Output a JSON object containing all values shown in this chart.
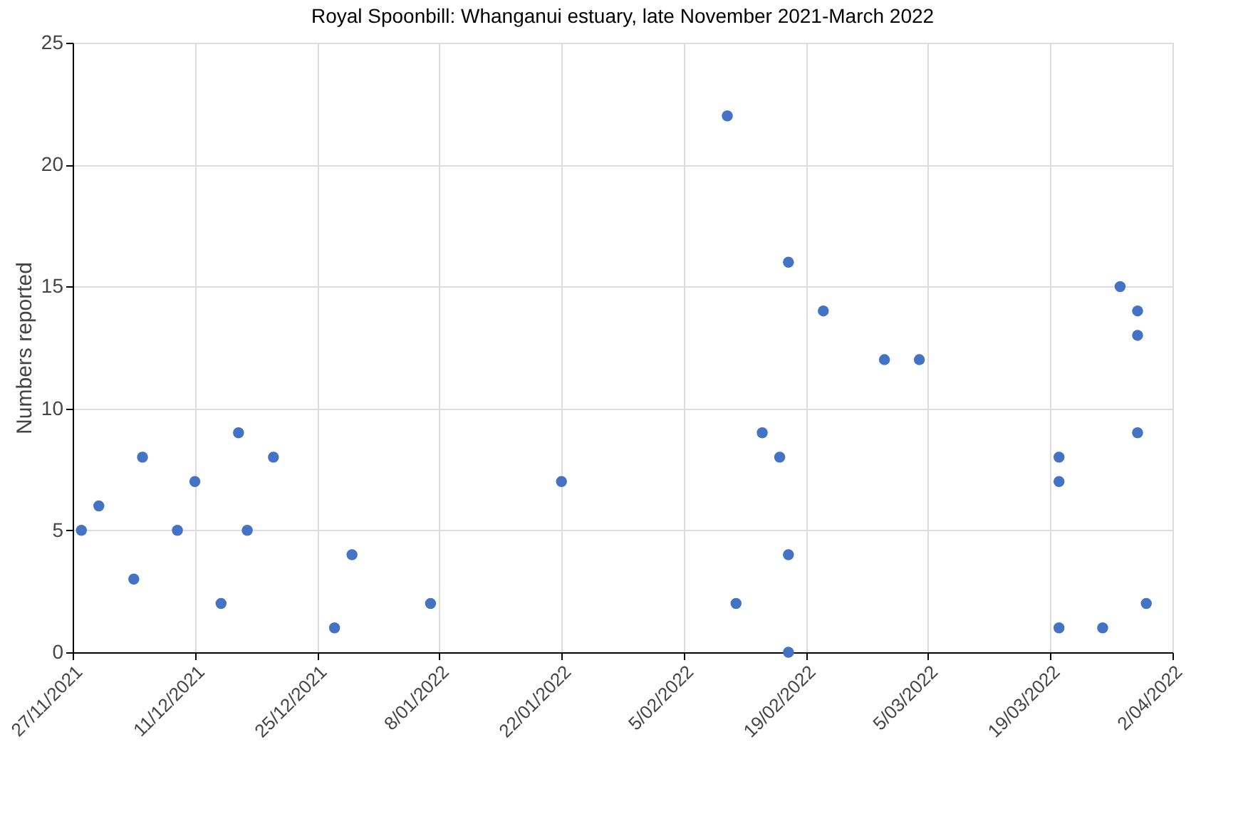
{
  "chart_data": {
    "type": "scatter",
    "title": "Royal Spoonbill: Whanganui estuary, late November 2021-March 2022",
    "ylabel": "Numbers reported",
    "x": [
      "2021-11-28",
      "2021-11-30",
      "2021-12-04",
      "2021-12-05",
      "2021-12-09",
      "2021-12-11",
      "2021-12-14",
      "2021-12-16",
      "2021-12-17",
      "2021-12-20",
      "2021-12-27",
      "2021-12-29",
      "2022-01-07",
      "2022-01-22",
      "2022-02-10",
      "2022-02-11",
      "2022-02-14",
      "2022-02-16",
      "2022-02-17",
      "2022-02-17",
      "2022-02-17",
      "2022-02-21",
      "2022-02-28",
      "2022-03-04",
      "2022-03-20",
      "2022-03-20",
      "2022-03-20",
      "2022-03-25",
      "2022-03-27",
      "2022-03-29",
      "2022-03-29",
      "2022-03-29",
      "2022-03-30"
    ],
    "series": [
      {
        "color": "#4472c4",
        "values": [
          5,
          6,
          3,
          8,
          5,
          7,
          2,
          9,
          5,
          8,
          1,
          4,
          2,
          7,
          22,
          2,
          9,
          8,
          16,
          4,
          0,
          14,
          12,
          12,
          8,
          7,
          1,
          1,
          15,
          14,
          13,
          9,
          2
        ]
      }
    ],
    "xlim": [
      "2021-11-27",
      "2022-04-02"
    ],
    "xticks": [
      {
        "value": "2021-11-27",
        "label": "27/11/2021"
      },
      {
        "value": "2021-12-11",
        "label": "11/12/2021"
      },
      {
        "value": "2021-12-25",
        "label": "25/12/2021"
      },
      {
        "value": "2022-01-08",
        "label": "8/01/2022"
      },
      {
        "value": "2022-01-22",
        "label": "22/01/2022"
      },
      {
        "value": "2022-02-05",
        "label": "5/02/2022"
      },
      {
        "value": "2022-02-19",
        "label": "19/02/2022"
      },
      {
        "value": "2022-03-05",
        "label": "5/03/2022"
      },
      {
        "value": "2022-03-19",
        "label": "19/03/2022"
      },
      {
        "value": "2022-04-02",
        "label": "2/04/2022"
      }
    ],
    "ylim": [
      0,
      25
    ],
    "yticks": [
      0,
      5,
      10,
      15,
      20,
      25
    ],
    "grid": true,
    "marker": "circle"
  }
}
